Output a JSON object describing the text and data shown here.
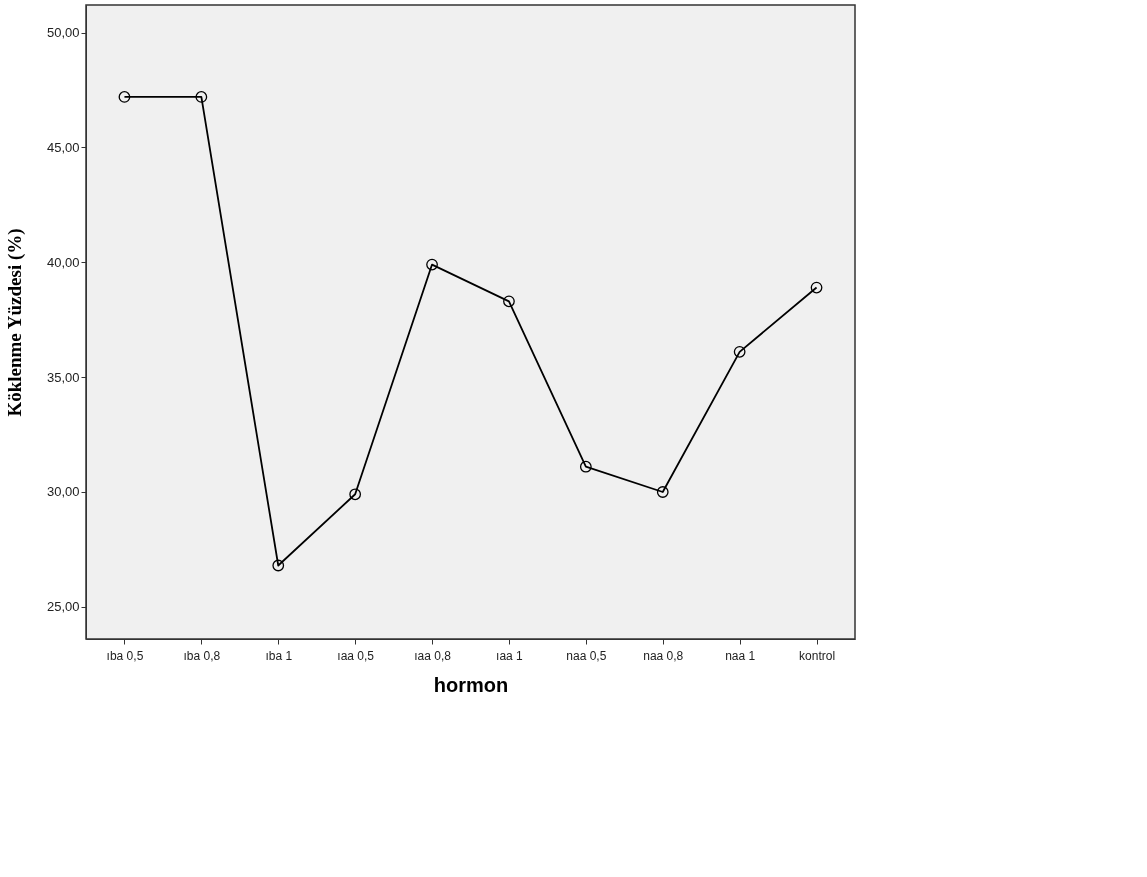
{
  "chart_data": {
    "type": "line",
    "xlabel": "hormon",
    "ylabel": "Köklenme Yüzdesi (%)",
    "categories": [
      "ıba 0,5",
      "ıba 0,8",
      "ıba 1",
      "ıaa 0,5",
      "ıaa 0,8",
      "ıaa 1",
      "naa 0,5",
      "naa 0,8",
      "naa 1",
      "kontrol"
    ],
    "series": [
      {
        "color": "#000000",
        "values": [
          47.2,
          47.2,
          26.8,
          29.9,
          39.9,
          38.3,
          31.1,
          30.0,
          36.1,
          38.9
        ]
      }
    ],
    "ylim": [
      23.6,
      51.2
    ],
    "yticks": [
      {
        "value": 25,
        "label": "25,00"
      },
      {
        "value": 30,
        "label": "30,00"
      },
      {
        "value": 35,
        "label": "35,00"
      },
      {
        "value": 40,
        "label": "40,00"
      },
      {
        "value": 45,
        "label": "45,00"
      },
      {
        "value": 50,
        "label": "50,00"
      }
    ],
    "grid": false,
    "marker": "circle",
    "line_style": "solid"
  }
}
